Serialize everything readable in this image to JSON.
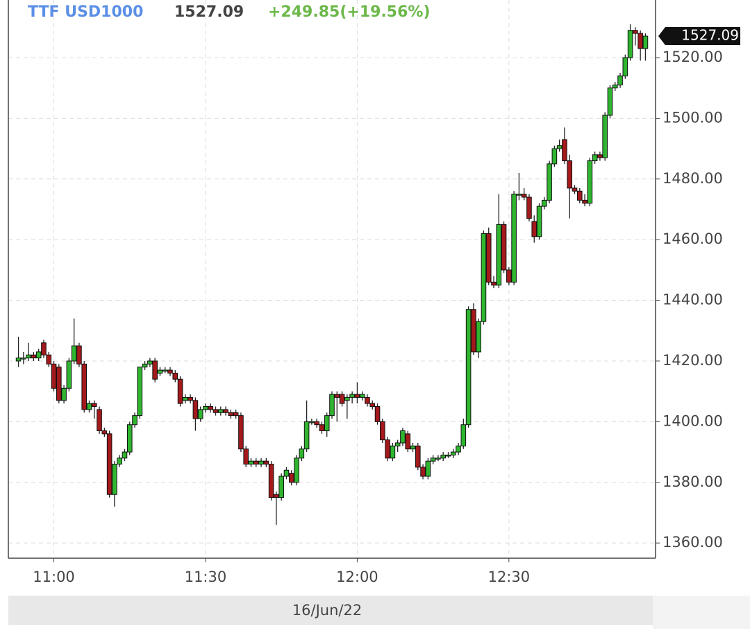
{
  "chart_data": {
    "type": "candlestick",
    "title": "TTF USD1000",
    "last": 1527.09,
    "change": "+249.85(+19.56%)",
    "xlabel": "16/Jun/22",
    "up_color": "#2fb52f",
    "down_color": "#a3191c",
    "grid": true,
    "xlim": [
      "10:51",
      "12:59"
    ],
    "xticks": [
      "11:00",
      "11:30",
      "12:00",
      "12:30"
    ],
    "ylim": [
      1355,
      1539
    ],
    "yticks": [
      {
        "value": 1360,
        "label": "1360.00"
      },
      {
        "value": 1380,
        "label": "1380.00"
      },
      {
        "value": 1400,
        "label": "1400.00"
      },
      {
        "value": 1420,
        "label": "1420.00"
      },
      {
        "value": 1440,
        "label": "1440.00"
      },
      {
        "value": 1460,
        "label": "1460.00"
      },
      {
        "value": 1480,
        "label": "1480.00"
      },
      {
        "value": 1500,
        "label": "1500.00"
      },
      {
        "value": 1520,
        "label": "1520.00"
      }
    ],
    "x": [
      "10:53",
      "10:54",
      "10:55",
      "10:56",
      "10:57",
      "10:58",
      "10:59",
      "11:00",
      "11:01",
      "11:02",
      "11:03",
      "11:04",
      "11:05",
      "11:06",
      "11:07",
      "11:08",
      "11:09",
      "11:10",
      "11:11",
      "11:12",
      "11:13",
      "11:14",
      "11:15",
      "11:16",
      "11:17",
      "11:18",
      "11:19",
      "11:20",
      "11:21",
      "11:22",
      "11:23",
      "11:24",
      "11:25",
      "11:26",
      "11:27",
      "11:28",
      "11:29",
      "11:30",
      "11:31",
      "11:32",
      "11:33",
      "11:34",
      "11:35",
      "11:36",
      "11:37",
      "11:38",
      "11:39",
      "11:40",
      "11:41",
      "11:42",
      "11:43",
      "11:44",
      "11:45",
      "11:46",
      "11:47",
      "11:48",
      "11:49",
      "11:50",
      "11:51",
      "11:52",
      "11:53",
      "11:54",
      "11:55",
      "11:56",
      "11:57",
      "11:58",
      "11:59",
      "12:00",
      "12:01",
      "12:02",
      "12:03",
      "12:04",
      "12:05",
      "12:06",
      "12:07",
      "12:08",
      "12:09",
      "12:10",
      "12:11",
      "12:12",
      "12:13",
      "12:14",
      "12:15",
      "12:16",
      "12:17",
      "12:18",
      "12:19",
      "12:20",
      "12:21",
      "12:22",
      "12:23",
      "12:24",
      "12:25",
      "12:26",
      "12:27",
      "12:28",
      "12:29",
      "12:30",
      "12:31",
      "12:32",
      "12:33",
      "12:34",
      "12:35",
      "12:36",
      "12:37",
      "12:38",
      "12:39",
      "12:40",
      "12:41",
      "12:42",
      "12:43",
      "12:44",
      "12:45",
      "12:46",
      "12:47",
      "12:48",
      "12:49",
      "12:50",
      "12:51",
      "12:52",
      "12:53",
      "12:54",
      "12:55",
      "12:56",
      "12:57"
    ],
    "open": [
      1420,
      1421,
      1421,
      1422,
      1421,
      1426,
      1422,
      1419,
      1418,
      1407,
      1411,
      1420,
      1425,
      1419,
      1404,
      1406,
      1404,
      1397,
      1396,
      1376,
      1386,
      1388,
      1390,
      1399,
      1402,
      1418,
      1419,
      1420,
      1416,
      1417,
      1417,
      1416,
      1414,
      1407,
      1408,
      1407,
      1401,
      1404,
      1405,
      1404,
      1403,
      1404,
      1403,
      1403,
      1402,
      1391,
      1386,
      1387,
      1386,
      1387,
      1386,
      1376,
      1375,
      1382,
      1383,
      1380,
      1388,
      1391,
      1400,
      1400,
      1399,
      1397,
      1402,
      1409,
      1409,
      1407,
      1408,
      1409,
      1408,
      1408,
      1406,
      1405,
      1400,
      1394,
      1388,
      1392,
      1393,
      1396,
      1391,
      1392,
      1385,
      1382,
      1387,
      1388,
      1388,
      1389,
      1389,
      1390,
      1392,
      1399,
      1437,
      1423,
      1433,
      1462,
      1446,
      1445,
      1465,
      1450,
      1446,
      1475,
      1475,
      1474,
      1466,
      1461,
      1471,
      1473,
      1485,
      1490,
      1493,
      1486,
      1477,
      1476,
      1473,
      1472,
      1486,
      1488,
      1487,
      1501,
      1510,
      1511,
      1514,
      1520,
      1529,
      1528,
      1523
    ],
    "high": [
      1428,
      1423,
      1426,
      1423,
      1424,
      1427,
      1423,
      1420,
      1419,
      1412,
      1421,
      1434,
      1426,
      1420,
      1407,
      1407,
      1405,
      1398,
      1397,
      1387,
      1389,
      1391,
      1400,
      1403,
      1418,
      1420,
      1421,
      1421,
      1418,
      1418,
      1418,
      1417,
      1415,
      1409,
      1409,
      1408,
      1405,
      1406,
      1406,
      1405,
      1405,
      1405,
      1404,
      1404,
      1403,
      1392,
      1388,
      1388,
      1388,
      1388,
      1387,
      1377,
      1383,
      1385,
      1384,
      1389,
      1392,
      1407,
      1401,
      1401,
      1400,
      1403,
      1410,
      1410,
      1410,
      1409,
      1410,
      1413,
      1410,
      1409,
      1407,
      1406,
      1401,
      1395,
      1393,
      1394,
      1398,
      1397,
      1393,
      1393,
      1386,
      1388,
      1389,
      1389,
      1390,
      1390,
      1391,
      1393,
      1401,
      1438,
      1439,
      1434,
      1463,
      1464,
      1448,
      1475,
      1466,
      1451,
      1476,
      1482,
      1477,
      1475,
      1468,
      1472,
      1474,
      1486,
      1491,
      1493,
      1497,
      1488,
      1478,
      1477,
      1475,
      1487,
      1489,
      1489,
      1502,
      1511,
      1512,
      1515,
      1521,
      1531,
      1530,
      1529,
      1528
    ],
    "low": [
      1418,
      1419,
      1420,
      1420,
      1420,
      1421,
      1418,
      1410,
      1406,
      1406,
      1410,
      1419,
      1418,
      1403,
      1403,
      1401,
      1396,
      1395,
      1375,
      1372,
      1385,
      1387,
      1389,
      1398,
      1401,
      1417,
      1418,
      1413,
      1415,
      1416,
      1415,
      1413,
      1405,
      1406,
      1406,
      1397,
      1400,
      1403,
      1403,
      1402,
      1402,
      1402,
      1401,
      1401,
      1390,
      1385,
      1385,
      1385,
      1385,
      1385,
      1374,
      1366,
      1374,
      1381,
      1379,
      1379,
      1387,
      1390,
      1399,
      1398,
      1396,
      1395,
      1401,
      1400,
      1405,
      1401,
      1406,
      1406,
      1407,
      1405,
      1404,
      1399,
      1393,
      1387,
      1387,
      1390,
      1392,
      1390,
      1390,
      1384,
      1381,
      1381,
      1386,
      1387,
      1387,
      1388,
      1388,
      1389,
      1391,
      1398,
      1422,
      1421,
      1432,
      1445,
      1444,
      1444,
      1449,
      1445,
      1445,
      1473,
      1473,
      1466,
      1459,
      1460,
      1470,
      1472,
      1484,
      1489,
      1485,
      1467,
      1475,
      1472,
      1471,
      1471,
      1485,
      1486,
      1486,
      1500,
      1509,
      1510,
      1513,
      1519,
      1524,
      1519,
      1519
    ],
    "close": [
      1421,
      1421,
      1422,
      1421,
      1423,
      1422,
      1419,
      1411,
      1407,
      1411,
      1420,
      1425,
      1419,
      1404,
      1406,
      1405,
      1397,
      1396,
      1376,
      1386,
      1388,
      1390,
      1399,
      1402,
      1418,
      1419,
      1420,
      1414,
      1417,
      1417,
      1416,
      1414,
      1406,
      1408,
      1407,
      1401,
      1404,
      1405,
      1404,
      1403,
      1404,
      1403,
      1402,
      1402,
      1391,
      1386,
      1387,
      1386,
      1387,
      1386,
      1375,
      1375,
      1382,
      1384,
      1380,
      1388,
      1391,
      1400,
      1400,
      1399,
      1397,
      1402,
      1409,
      1408,
      1406,
      1408,
      1409,
      1408,
      1409,
      1406,
      1405,
      1400,
      1394,
      1388,
      1392,
      1393,
      1397,
      1391,
      1392,
      1385,
      1382,
      1387,
      1388,
      1388,
      1389,
      1389,
      1390,
      1392,
      1399,
      1437,
      1423,
      1433,
      1462,
      1446,
      1445,
      1465,
      1450,
      1446,
      1475,
      1475,
      1474,
      1467,
      1461,
      1471,
      1473,
      1485,
      1490,
      1491,
      1486,
      1477,
      1476,
      1473,
      1472,
      1486,
      1488,
      1487,
      1501,
      1510,
      1511,
      1514,
      1520,
      1529,
      1528,
      1523,
      1527.09
    ]
  }
}
